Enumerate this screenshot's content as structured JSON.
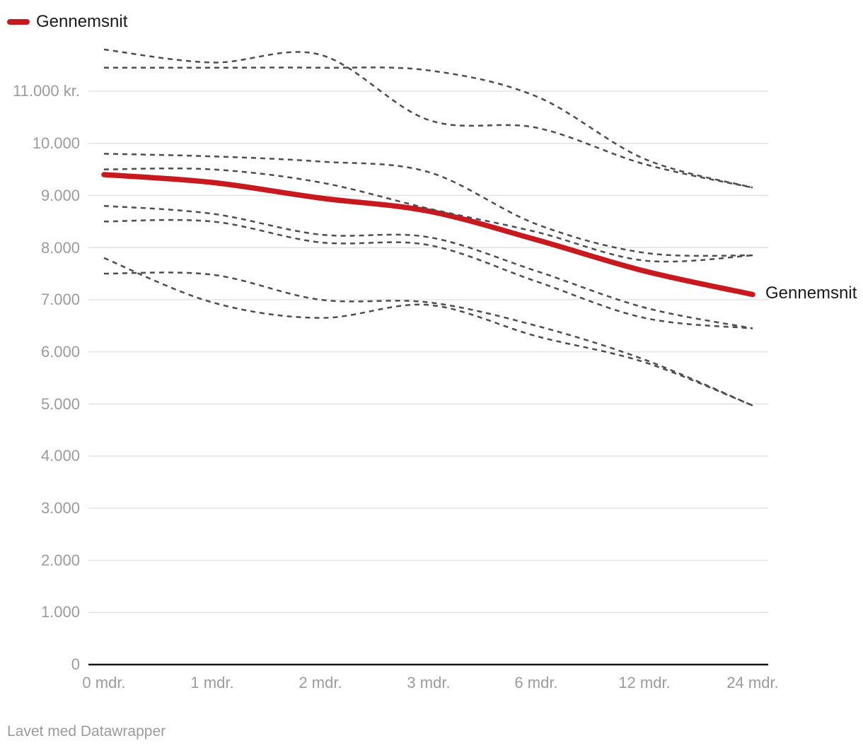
{
  "legend": {
    "label": "Gennemsnit"
  },
  "line_label": "Gennemsnit",
  "footer": {
    "text": "Lavet med Datawrapper"
  },
  "palette": {
    "line_red": "#c8191e",
    "dashed_gray": "#4d4d4d",
    "grid": "#e3e3e3",
    "axis": "#151515",
    "tick_text": "#9b9b9b",
    "text": "#1a1a1a"
  },
  "chart_data": {
    "type": "line",
    "title": "",
    "xlabel": "",
    "ylabel": "kr.",
    "grid": true,
    "legend_position": "top-left",
    "ylim": [
      0,
      11800
    ],
    "categories": [
      "0 mdr.",
      "1 mdr.",
      "2 mdr.",
      "3 mdr.",
      "6 mdr.",
      "12 mdr.",
      "24 mdr."
    ],
    "yticks": [
      {
        "value": 11000,
        "label": "11.000 kr."
      },
      {
        "value": 10000,
        "label": "10.000"
      },
      {
        "value": 9000,
        "label": "9.000"
      },
      {
        "value": 8000,
        "label": "8.000"
      },
      {
        "value": 7000,
        "label": "7.000"
      },
      {
        "value": 6000,
        "label": "6.000"
      },
      {
        "value": 5000,
        "label": "5.000"
      },
      {
        "value": 4000,
        "label": "4.000"
      },
      {
        "value": 3000,
        "label": "3.000"
      },
      {
        "value": 2000,
        "label": "2.000"
      },
      {
        "value": 1000,
        "label": "1.000"
      },
      {
        "value": 0,
        "label": "0"
      }
    ],
    "series": [
      {
        "name": "Gennemsnit",
        "style": "solid",
        "color": "#c8191e",
        "values": [
          9400,
          9250,
          8950,
          8700,
          8150,
          7550,
          7100
        ]
      },
      {
        "name": "dashed-1",
        "style": "dashed",
        "values": [
          11800,
          11550,
          11700,
          10450,
          10300,
          9600,
          9150
        ]
      },
      {
        "name": "dashed-2",
        "style": "dashed",
        "values": [
          11450,
          11450,
          11450,
          11400,
          10900,
          9700,
          9150
        ]
      },
      {
        "name": "dashed-3",
        "style": "dashed",
        "values": [
          9800,
          9750,
          9650,
          9450,
          8450,
          7900,
          7850
        ]
      },
      {
        "name": "dashed-4",
        "style": "dashed",
        "values": [
          9500,
          9500,
          9250,
          8750,
          8300,
          7750,
          7850
        ]
      },
      {
        "name": "dashed-5",
        "style": "dashed",
        "values": [
          8800,
          8650,
          8250,
          8200,
          7550,
          6850,
          6450
        ]
      },
      {
        "name": "dashed-6",
        "style": "dashed",
        "values": [
          8500,
          8500,
          8100,
          8050,
          7350,
          6650,
          6450
        ]
      },
      {
        "name": "dashed-7",
        "style": "dashed",
        "values": [
          7800,
          6950,
          6650,
          6900,
          6300,
          5800,
          4970
        ]
      },
      {
        "name": "dashed-8",
        "style": "dashed",
        "values": [
          7500,
          7480,
          7000,
          6950,
          6500,
          5850,
          4970
        ]
      }
    ]
  }
}
